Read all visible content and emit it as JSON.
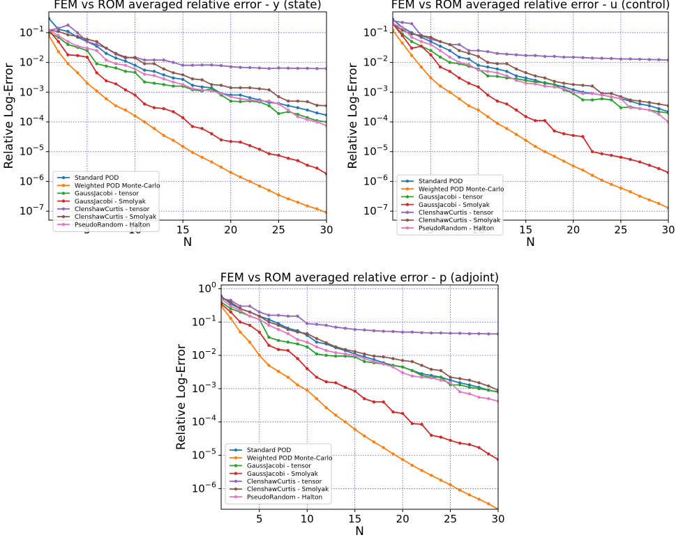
{
  "series_styles": [
    {
      "name": "Standard POD",
      "color": "#1f77b4"
    },
    {
      "name": "Weighted POD Monte-Carlo",
      "color": "#ff7f0e"
    },
    {
      "name": "GaussJacobi - tensor",
      "color": "#2ca02c"
    },
    {
      "name": "GaussJacobi - Smolyak",
      "color": "#d62728"
    },
    {
      "name": "ClenshawCurtis - tensor",
      "color": "#9467bd"
    },
    {
      "name": "ClenshawCurtis - Smolyak",
      "color": "#8c564b"
    },
    {
      "name": "PseudoRandom - Halton",
      "color": "#e377c2"
    }
  ],
  "chart_data": [
    {
      "type": "line",
      "title": "FEM vs ROM averaged relative error - y (state)",
      "xlabel": "N",
      "ylabel": "Relative Log-Error",
      "xlim": [
        1,
        30
      ],
      "ylim": [
        5e-08,
        0.5
      ],
      "yscale": "log",
      "grid": true,
      "legend_position": "lower-left",
      "xticks": [
        5,
        10,
        15,
        20,
        25,
        30
      ],
      "yticks": [
        1e-07,
        1e-06,
        1e-05,
        0.0001,
        0.001,
        0.01,
        0.1
      ],
      "ytick_labels": [
        [
          "10",
          "−7"
        ],
        [
          "10",
          "−6"
        ],
        [
          "10",
          "−5"
        ],
        [
          "10",
          "−4"
        ],
        [
          "10",
          "−3"
        ],
        [
          "10",
          "−2"
        ],
        [
          "10",
          "−1"
        ]
      ],
      "x": [
        1,
        2,
        3,
        4,
        5,
        6,
        7,
        8,
        9,
        10,
        11,
        12,
        13,
        14,
        15,
        16,
        17,
        18,
        19,
        20,
        21,
        22,
        23,
        24,
        25,
        26,
        27,
        28,
        29,
        30
      ],
      "series": [
        {
          "name": "Standard POD",
          "values": [
            0.3,
            0.13,
            0.11,
            0.07,
            0.05,
            0.035,
            0.02,
            0.014,
            0.011,
            0.008,
            0.0055,
            0.005,
            0.0038,
            0.003,
            0.0027,
            0.0017,
            0.0015,
            0.0014,
            0.0009,
            0.0008,
            0.0008,
            0.00065,
            0.00055,
            0.00045,
            0.00042,
            0.00035,
            0.0003,
            0.00025,
            0.0002,
            0.00017
          ]
        },
        {
          "name": "Weighted POD Monte-Carlo",
          "values": [
            0.08,
            0.023,
            0.009,
            0.0045,
            0.002,
            0.0011,
            0.0006,
            0.00035,
            0.00025,
            0.00016,
            0.0001,
            6e-05,
            3.5e-05,
            2.4e-05,
            1.5e-05,
            9.5e-06,
            6.5e-06,
            4.5e-06,
            3e-06,
            2e-06,
            1.4e-06,
            1e-06,
            7e-07,
            5e-07,
            3.5e-07,
            2.6e-07,
            2e-07,
            1.5e-07,
            1.2e-07,
            9e-08
          ]
        },
        {
          "name": "GaussJacobi - tensor",
          "values": [
            0.1,
            0.07,
            0.04,
            0.032,
            0.025,
            0.009,
            0.0075,
            0.0065,
            0.005,
            0.0046,
            0.0022,
            0.002,
            0.0018,
            0.0016,
            0.0016,
            0.0012,
            0.0011,
            0.0013,
            0.0008,
            0.0005,
            0.00048,
            0.0005,
            0.00047,
            0.00035,
            0.00019,
            0.00022,
            0.00018,
            0.00014,
            0.00011,
            0.0001
          ]
        },
        {
          "name": "GaussJacobi - Smolyak",
          "values": [
            0.12,
            0.05,
            0.018,
            0.017,
            0.015,
            0.0045,
            0.0024,
            0.0019,
            0.0012,
            0.0008,
            0.0004,
            0.0003,
            0.00028,
            0.00022,
            0.00014,
            7e-05,
            6e-05,
            4e-05,
            2.5e-05,
            2.2e-05,
            2.1e-05,
            1.6e-05,
            1.2e-05,
            8.5e-06,
            7.5e-06,
            6e-06,
            5e-06,
            3.5e-06,
            2.8e-06,
            1.8e-06
          ]
        },
        {
          "name": "ClenshawCurtis - tensor",
          "values": [
            0.12,
            0.14,
            0.18,
            0.1,
            0.05,
            0.04,
            0.03,
            0.019,
            0.014,
            0.015,
            0.012,
            0.012,
            0.012,
            0.01,
            0.008,
            0.008,
            0.0082,
            0.0082,
            0.0078,
            0.0072,
            0.0068,
            0.0067,
            0.0065,
            0.0062,
            0.0065,
            0.0064,
            0.0063,
            0.0063,
            0.0062,
            0.0062
          ]
        },
        {
          "name": "ClenshawCurtis - Smolyak",
          "values": [
            0.12,
            0.11,
            0.085,
            0.075,
            0.06,
            0.05,
            0.03,
            0.02,
            0.015,
            0.014,
            0.009,
            0.009,
            0.006,
            0.0045,
            0.0038,
            0.0028,
            0.0026,
            0.0018,
            0.0017,
            0.0014,
            0.0014,
            0.0014,
            0.0013,
            0.0012,
            0.0007,
            0.0005,
            0.0005,
            0.00048,
            0.00036,
            0.00035
          ]
        },
        {
          "name": "PseudoRandom - Halton",
          "values": [
            0.12,
            0.08,
            0.05,
            0.035,
            0.03,
            0.025,
            0.012,
            0.009,
            0.008,
            0.006,
            0.004,
            0.0036,
            0.0028,
            0.0022,
            0.0018,
            0.0013,
            0.0012,
            0.0011,
            0.0009,
            0.0007,
            0.0006,
            0.00055,
            0.0005,
            0.0005,
            0.0004,
            0.00025,
            0.00015,
            0.00012,
            0.0001,
            7.5e-05
          ]
        }
      ]
    },
    {
      "type": "line",
      "title": "FEM vs ROM averaged relative error - u (control)",
      "xlabel": "N",
      "ylabel": "Relative Log-Error",
      "xlim": [
        1,
        30
      ],
      "ylim": [
        5e-08,
        0.5
      ],
      "yscale": "log",
      "grid": true,
      "legend_position": "lower-left",
      "xticks": [
        5,
        10,
        15,
        20,
        25,
        30
      ],
      "yticks": [
        1e-07,
        1e-06,
        1e-05,
        0.0001,
        0.001,
        0.01,
        0.1
      ],
      "ytick_labels": [
        [
          "10",
          "−7"
        ],
        [
          "10",
          "−6"
        ],
        [
          "10",
          "−5"
        ],
        [
          "10",
          "−4"
        ],
        [
          "10",
          "−3"
        ],
        [
          "10",
          "−2"
        ],
        [
          "10",
          "−1"
        ]
      ],
      "x": [
        1,
        2,
        3,
        4,
        5,
        6,
        7,
        8,
        9,
        10,
        11,
        12,
        13,
        14,
        15,
        16,
        17,
        18,
        19,
        20,
        21,
        22,
        23,
        24,
        25,
        26,
        27,
        28,
        29,
        30
      ],
      "series": [
        {
          "name": "Standard POD",
          "values": [
            0.28,
            0.15,
            0.1,
            0.07,
            0.05,
            0.035,
            0.025,
            0.015,
            0.013,
            0.008,
            0.007,
            0.006,
            0.005,
            0.0035,
            0.003,
            0.0025,
            0.002,
            0.0018,
            0.0015,
            0.0012,
            0.001,
            0.0009,
            0.0008,
            0.0007,
            0.0006,
            0.0005,
            0.0004,
            0.00035,
            0.00028,
            0.00022
          ]
        },
        {
          "name": "Weighted POD Monte-Carlo",
          "values": [
            0.12,
            0.045,
            0.017,
            0.007,
            0.003,
            0.0016,
            0.001,
            0.0006,
            0.00035,
            0.00025,
            0.00015,
            9e-05,
            6e-05,
            3.8e-05,
            2.4e-05,
            1.5e-05,
            1e-05,
            7e-06,
            4.8e-06,
            3.3e-06,
            2.4e-06,
            1.6e-06,
            1.1e-06,
            8e-07,
            6e-07,
            4.5e-07,
            3.2e-07,
            2.4e-07,
            1.8e-07,
            1.3e-07
          ]
        },
        {
          "name": "GaussJacobi - tensor",
          "values": [
            0.2,
            0.09,
            0.05,
            0.035,
            0.025,
            0.015,
            0.01,
            0.009,
            0.0075,
            0.006,
            0.0035,
            0.0034,
            0.003,
            0.0028,
            0.0025,
            0.0022,
            0.0021,
            0.0018,
            0.0012,
            0.0009,
            0.00055,
            0.00055,
            0.0006,
            0.00055,
            0.0003,
            0.00032,
            0.00028,
            0.00025,
            0.00022,
            0.0002
          ]
        },
        {
          "name": "GaussJacobi - Smolyak",
          "values": [
            0.2,
            0.08,
            0.03,
            0.035,
            0.018,
            0.007,
            0.005,
            0.003,
            0.002,
            0.0015,
            0.0008,
            0.0005,
            0.0004,
            0.00025,
            0.00015,
            0.00011,
            0.00011,
            5e-05,
            4e-05,
            3.5e-05,
            3.2e-05,
            1e-05,
            8.5e-06,
            7.5e-06,
            6.5e-06,
            5.5e-06,
            4.5e-06,
            3.5e-06,
            2.7e-06,
            2e-06
          ]
        },
        {
          "name": "ClenshawCurtis - tensor",
          "values": [
            0.25,
            0.22,
            0.2,
            0.08,
            0.06,
            0.05,
            0.04,
            0.04,
            0.025,
            0.025,
            0.023,
            0.02,
            0.019,
            0.018,
            0.017,
            0.017,
            0.016,
            0.016,
            0.015,
            0.015,
            0.0145,
            0.014,
            0.0138,
            0.0135,
            0.013,
            0.013,
            0.0128,
            0.0125,
            0.0123,
            0.012
          ]
        },
        {
          "name": "ClenshawCurtis - Smolyak",
          "values": [
            0.2,
            0.12,
            0.09,
            0.08,
            0.07,
            0.05,
            0.04,
            0.025,
            0.02,
            0.016,
            0.01,
            0.009,
            0.009,
            0.006,
            0.0045,
            0.0035,
            0.003,
            0.0023,
            0.002,
            0.0018,
            0.0017,
            0.0016,
            0.0009,
            0.0009,
            0.0007,
            0.00055,
            0.0005,
            0.00045,
            0.0004,
            0.00035
          ]
        },
        {
          "name": "PseudoRandom - Halton",
          "values": [
            0.2,
            0.15,
            0.07,
            0.05,
            0.04,
            0.025,
            0.015,
            0.01,
            0.0085,
            0.0055,
            0.005,
            0.0045,
            0.0035,
            0.0025,
            0.002,
            0.0019,
            0.0016,
            0.0015,
            0.0013,
            0.001,
            0.0009,
            0.0009,
            0.0008,
            0.0007,
            0.0006,
            0.0003,
            0.00028,
            0.00025,
            0.00018,
            0.0001
          ]
        }
      ]
    },
    {
      "type": "line",
      "title": "FEM vs ROM averaged relative error - p (adjoint)",
      "xlabel": "N",
      "ylabel": "Relative Log-Error",
      "xlim": [
        1,
        30
      ],
      "ylim": [
        2.4e-07,
        1.3
      ],
      "yscale": "log",
      "grid": true,
      "legend_position": "lower-left",
      "xticks": [
        5,
        10,
        15,
        20,
        25,
        30
      ],
      "yticks": [
        1e-06,
        1e-05,
        0.0001,
        0.001,
        0.01,
        0.1,
        1
      ],
      "ytick_labels": [
        [
          "10",
          "−6"
        ],
        [
          "10",
          "−5"
        ],
        [
          "10",
          "−4"
        ],
        [
          "10",
          "−3"
        ],
        [
          "10",
          "−2"
        ],
        [
          "10",
          "−1"
        ],
        [
          "10",
          "0"
        ]
      ],
      "x": [
        1,
        2,
        3,
        4,
        5,
        6,
        7,
        8,
        9,
        10,
        11,
        12,
        13,
        14,
        15,
        16,
        17,
        18,
        19,
        20,
        21,
        22,
        23,
        24,
        25,
        26,
        27,
        28,
        29,
        30
      ],
      "series": [
        {
          "name": "Standard POD",
          "values": [
            0.6,
            0.35,
            0.25,
            0.2,
            0.15,
            0.12,
            0.09,
            0.065,
            0.055,
            0.04,
            0.025,
            0.022,
            0.017,
            0.014,
            0.011,
            0.009,
            0.0075,
            0.006,
            0.005,
            0.0045,
            0.0035,
            0.0028,
            0.0025,
            0.0022,
            0.0018,
            0.0015,
            0.0013,
            0.0011,
            0.0009,
            0.0008
          ]
        },
        {
          "name": "Weighted POD Monte-Carlo",
          "values": [
            0.3,
            0.13,
            0.05,
            0.025,
            0.01,
            0.005,
            0.0033,
            0.0022,
            0.0013,
            0.0009,
            0.0005,
            0.00027,
            0.00016,
            0.0001,
            6e-05,
            3.8e-05,
            2.5e-05,
            1.7e-05,
            1.1e-05,
            7.5e-06,
            5e-06,
            3.5e-06,
            2.5e-06,
            1.8e-06,
            1.3e-06,
            9e-07,
            6.5e-07,
            4.8e-07,
            3.5e-07,
            2.4e-07
          ]
        },
        {
          "name": "GaussJacobi - tensor",
          "values": [
            0.4,
            0.25,
            0.2,
            0.15,
            0.12,
            0.035,
            0.028,
            0.025,
            0.022,
            0.018,
            0.011,
            0.01,
            0.0095,
            0.0095,
            0.009,
            0.0065,
            0.006,
            0.0055,
            0.005,
            0.0045,
            0.0035,
            0.0025,
            0.0022,
            0.0022,
            0.0013,
            0.0013,
            0.0011,
            0.001,
            0.0009,
            0.0008
          ]
        },
        {
          "name": "GaussJacobi - Smolyak",
          "values": [
            0.35,
            0.2,
            0.1,
            0.08,
            0.05,
            0.02,
            0.015,
            0.014,
            0.008,
            0.004,
            0.0022,
            0.0016,
            0.0015,
            0.0011,
            0.00085,
            0.0005,
            0.0004,
            0.0004,
            0.0002,
            0.00018,
            9e-05,
            8.5e-05,
            4e-05,
            3.5e-05,
            2.8e-05,
            2.3e-05,
            2.1e-05,
            1.7e-05,
            1.1e-05,
            7.5e-06
          ]
        },
        {
          "name": "ClenshawCurtis - tensor",
          "values": [
            0.5,
            0.45,
            0.3,
            0.3,
            0.2,
            0.16,
            0.16,
            0.15,
            0.15,
            0.09,
            0.085,
            0.08,
            0.07,
            0.065,
            0.06,
            0.058,
            0.055,
            0.053,
            0.052,
            0.05,
            0.05,
            0.048,
            0.047,
            0.047,
            0.046,
            0.046,
            0.045,
            0.045,
            0.044,
            0.044
          ]
        },
        {
          "name": "ClenshawCurtis - Smolyak",
          "values": [
            0.55,
            0.4,
            0.25,
            0.2,
            0.15,
            0.1,
            0.08,
            0.06,
            0.05,
            0.045,
            0.032,
            0.024,
            0.018,
            0.015,
            0.013,
            0.011,
            0.0095,
            0.009,
            0.008,
            0.007,
            0.0065,
            0.005,
            0.0038,
            0.0035,
            0.0022,
            0.002,
            0.0018,
            0.0015,
            0.0012,
            0.0009
          ]
        },
        {
          "name": "PseudoRandom - Halton",
          "values": [
            0.5,
            0.3,
            0.22,
            0.15,
            0.12,
            0.08,
            0.06,
            0.045,
            0.03,
            0.025,
            0.018,
            0.014,
            0.012,
            0.011,
            0.01,
            0.008,
            0.0065,
            0.0055,
            0.0045,
            0.003,
            0.0024,
            0.0022,
            0.0021,
            0.0018,
            0.0015,
            0.0008,
            0.0007,
            0.00055,
            0.0005,
            0.00042
          ]
        }
      ]
    }
  ]
}
